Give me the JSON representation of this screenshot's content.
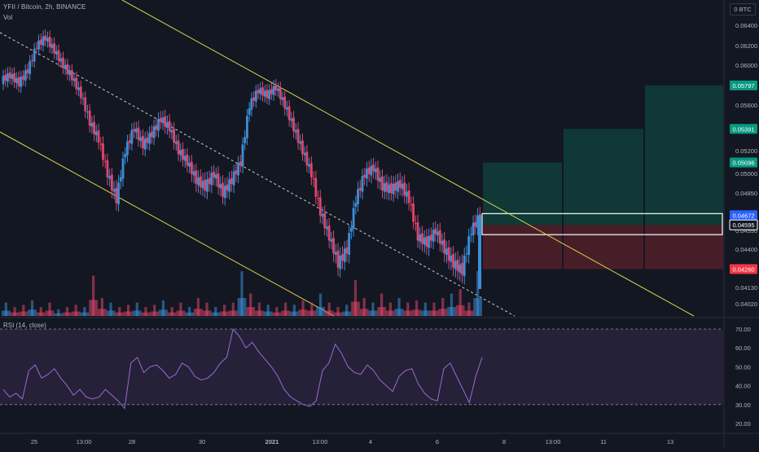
{
  "header": {
    "title": "YFII / Bitcoin, 2h, BINANCE",
    "vol_label": "Vol",
    "rsi_label": "RSI (14, close)",
    "currency": "0 BTC"
  },
  "colors": {
    "background": "#131722",
    "up": "#3d8ed6",
    "down": "#e0456a",
    "channel": "#d6d24a",
    "midline": "#c9cbd1",
    "rsi_line": "#9a6ad0",
    "rsi_band": "#2a2440",
    "target_fill": "#0f3a38",
    "stop_fill": "#4a1f29",
    "current_tag": "#2962ff",
    "target_tag": "#089981",
    "stop_tag": "#f23645"
  },
  "chart_data": [
    {
      "type": "candlestick",
      "title": "YFII / Bitcoin, 2h, BINANCE",
      "y_ticks": [
        "0.06400",
        "0.06200",
        "0.06000",
        "0.05600",
        "0.05200",
        "0.05000",
        "0.04850",
        "0.04550",
        "0.04400",
        "0.04130",
        "0.04020"
      ],
      "x_ticks": [
        "25",
        "13:00",
        "28",
        "30",
        "2021",
        "13:00",
        "4",
        "6",
        "8",
        "13:00",
        "11",
        "13"
      ],
      "price_tags": [
        {
          "value": "0.05797",
          "role": "target"
        },
        {
          "value": "0.05391",
          "role": "target"
        },
        {
          "value": "0.05096",
          "role": "target"
        },
        {
          "value": "0.04672",
          "role": "current"
        },
        {
          "value": "0.04595",
          "role": "entry"
        },
        {
          "value": "0.04260",
          "role": "stop"
        }
      ],
      "close_path": [
        0.0585,
        0.059,
        0.0582,
        0.0595,
        0.062,
        0.0628,
        0.0615,
        0.06,
        0.0588,
        0.057,
        0.0545,
        0.053,
        0.05,
        0.048,
        0.052,
        0.054,
        0.0525,
        0.0535,
        0.0548,
        0.054,
        0.052,
        0.051,
        0.0495,
        0.049,
        0.05,
        0.0485,
        0.0495,
        0.051,
        0.056,
        0.0575,
        0.057,
        0.0578,
        0.056,
        0.054,
        0.052,
        0.05,
        0.047,
        0.045,
        0.043,
        0.044,
        0.048,
        0.05,
        0.0505,
        0.049,
        0.0488,
        0.0492,
        0.048,
        0.045,
        0.0445,
        0.0455,
        0.044,
        0.043,
        0.0425,
        0.0455,
        0.0467
      ],
      "volume_peaks": [
        0.3,
        0.2,
        0.25,
        0.35,
        0.2,
        0.3,
        0.15,
        0.2,
        0.25,
        0.2,
        0.9,
        0.4,
        0.3,
        0.2,
        0.25,
        0.3,
        0.2,
        0.25,
        0.35,
        0.2,
        0.3,
        0.2,
        0.4,
        0.3,
        0.2,
        0.25,
        0.3,
        1.0,
        0.5,
        0.3,
        0.25,
        0.2,
        0.3,
        0.25,
        0.35,
        0.3,
        0.5,
        0.3,
        0.2,
        0.25,
        0.8,
        0.4,
        0.3,
        0.5,
        0.3,
        0.4,
        0.3,
        0.35,
        0.3,
        0.3,
        0.4,
        0.5,
        0.6,
        0.3,
        1.0
      ]
    },
    {
      "type": "line",
      "title": "RSI (14, close)",
      "y_ticks": [
        "70.00",
        "60.00",
        "50.00",
        "40.00",
        "30.00",
        "20.00"
      ],
      "ylim": [
        15,
        75
      ],
      "bands": [
        30,
        70
      ],
      "values": [
        38,
        34,
        36,
        33,
        48,
        51,
        44,
        46,
        49,
        44,
        40,
        35,
        38,
        34,
        33,
        34,
        38,
        35,
        32,
        28,
        52,
        55,
        47,
        50,
        51,
        48,
        44,
        46,
        52,
        50,
        45,
        43,
        44,
        47,
        52,
        55,
        70,
        66,
        60,
        63,
        58,
        54,
        50,
        45,
        38,
        34,
        32,
        30,
        29,
        32,
        48,
        52,
        62,
        57,
        50,
        47,
        46,
        51,
        48,
        43,
        40,
        37,
        45,
        48,
        49,
        41,
        36,
        33,
        32,
        49,
        52,
        45,
        38,
        31,
        45,
        55
      ]
    }
  ]
}
